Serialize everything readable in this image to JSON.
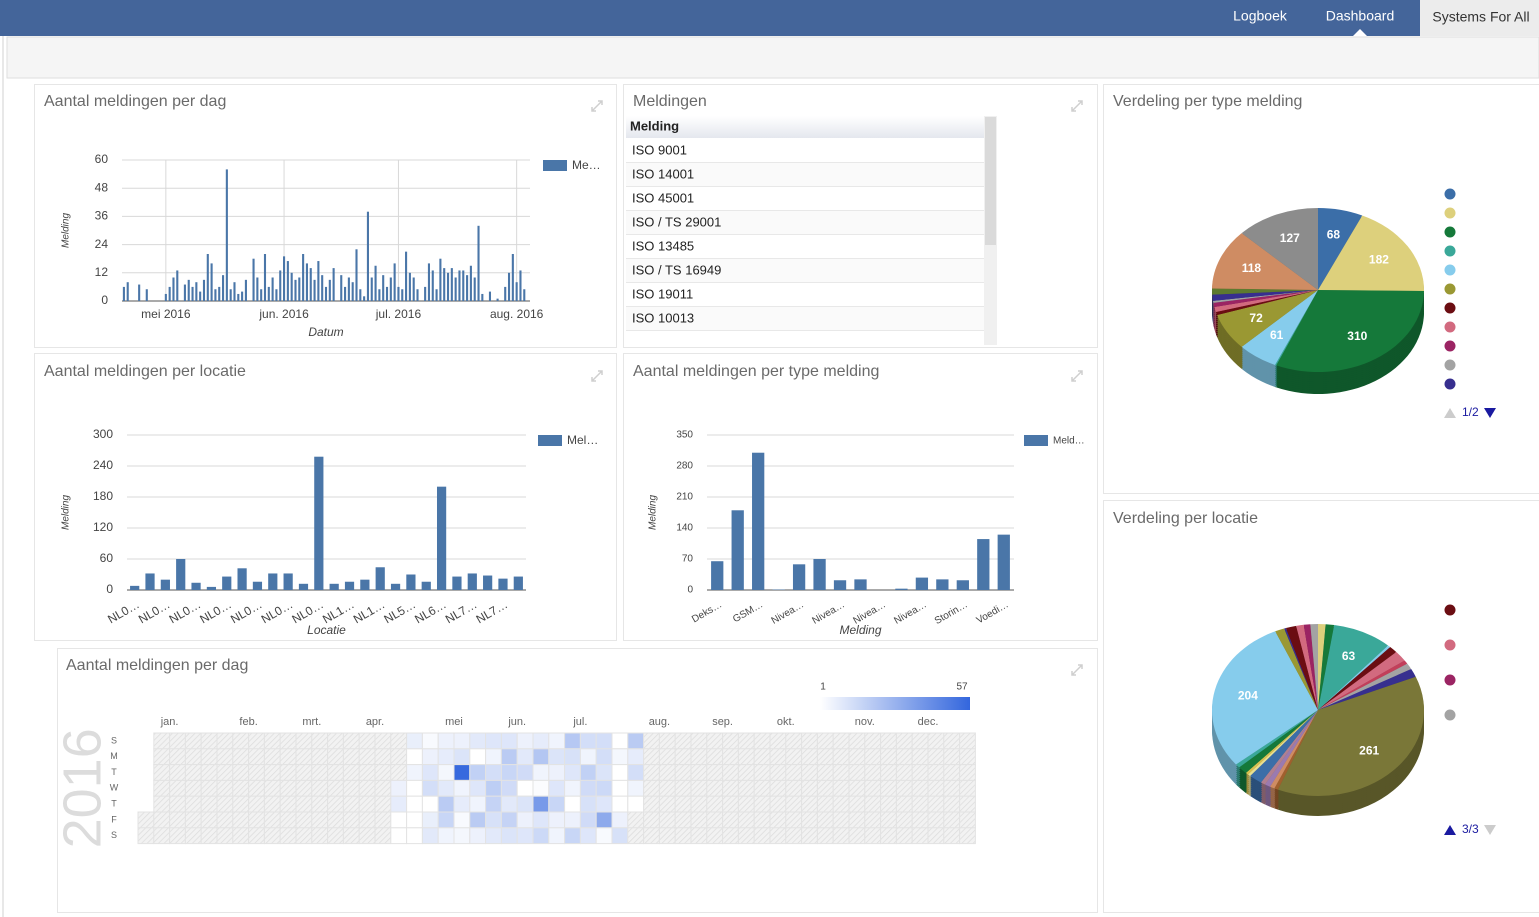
{
  "nav": {
    "items": [
      "Logboek",
      "Dashboard",
      "Systems For All"
    ]
  },
  "table": {
    "title": "Meldingen",
    "header": "Melding",
    "rows": [
      "ISO 9001",
      "ISO 14001",
      "ISO 45001",
      "ISO / TS 29001",
      "ISO 13485",
      "ISO / TS 16949",
      "ISO 19011",
      "ISO 10013"
    ]
  },
  "chart_data": [
    {
      "type": "bar",
      "title": "Aantal meldingen per dag",
      "xlabel": "Datum",
      "ylabel": "Melding",
      "categories": [
        null,
        null,
        null,
        null,
        null,
        null,
        null,
        null,
        null,
        null,
        null,
        "mei 2016",
        null,
        null,
        null,
        null,
        null,
        null,
        null,
        null,
        null,
        null,
        null,
        null,
        null,
        null,
        null,
        null,
        null,
        null,
        null,
        null,
        null,
        null,
        null,
        null,
        null,
        null,
        null,
        null,
        null,
        null,
        "jun. 2016",
        null,
        null,
        null,
        null,
        null,
        null,
        null,
        null,
        null,
        null,
        null,
        null,
        null,
        null,
        null,
        null,
        null,
        null,
        null,
        null,
        null,
        null,
        null,
        null,
        null,
        null,
        null,
        null,
        null,
        "jul. 2016",
        null,
        null,
        null,
        null,
        null,
        null,
        null,
        null,
        null,
        null,
        null,
        null,
        null,
        null,
        null,
        null,
        null,
        null,
        null,
        null,
        null,
        null,
        null,
        null,
        null,
        null,
        null,
        null,
        null,
        null,
        "aug. 2016",
        null,
        null,
        null
      ],
      "series": [
        {
          "name": "Me…",
          "color": "#4a76a8",
          "values": [
            6,
            8,
            0,
            0,
            7,
            0,
            5,
            0,
            0,
            0,
            0,
            3,
            6,
            10,
            13,
            0,
            7,
            9,
            6,
            8,
            4,
            9,
            20,
            16,
            5,
            6,
            11,
            56,
            5,
            8,
            3,
            4,
            9,
            0,
            18,
            10,
            5,
            20,
            6,
            10,
            5,
            13,
            19,
            17,
            12,
            9,
            10,
            20,
            16,
            14,
            9,
            17,
            11,
            6,
            9,
            14,
            0,
            11,
            6,
            10,
            8,
            22,
            5,
            2,
            38,
            10,
            15,
            5,
            11,
            6,
            10,
            16,
            6,
            5,
            21,
            12,
            10,
            5,
            0,
            6,
            16,
            13,
            5,
            18,
            14,
            12,
            14,
            10,
            13,
            13,
            11,
            15,
            10,
            32,
            3,
            0,
            4,
            0,
            1,
            0,
            6,
            12,
            20,
            8,
            13,
            5,
            0
          ]
        }
      ],
      "ylim": [
        0,
        60
      ],
      "yticks": [
        0,
        12,
        24,
        36,
        48,
        60
      ],
      "grid": true,
      "legend": "right"
    },
    {
      "type": "pie",
      "title": "Verdeling per type melding",
      "values": [
        68,
        182,
        310,
        2,
        61,
        72,
        6,
        10,
        8,
        4,
        12,
        12,
        118,
        127
      ],
      "colors": [
        "#3b6ea8",
        "#ddd07c",
        "#15793a",
        "#3aa899",
        "#86ccec",
        "#9a9833",
        "#6b0d12",
        "#d26a7f",
        "#9b2463",
        "#a3a3a3",
        "#372f8f",
        "#5e7a2f",
        "#cf8c63",
        "#8c8c8c"
      ],
      "legend": "right",
      "legend_page": "1/2"
    },
    {
      "type": "bar",
      "title": "Aantal meldingen per locatie",
      "xlabel": "Locatie",
      "ylabel": "Melding",
      "categories": [
        "NL0…",
        null,
        "NL0…",
        null,
        "NL0…",
        null,
        "NL0…",
        null,
        "NL0…",
        null,
        "NL0…",
        null,
        "NL0…",
        null,
        "NL1…",
        null,
        "NL1…",
        null,
        "NL5…",
        null,
        "NL6…",
        null,
        "NL7…",
        null,
        "NL7…",
        null
      ],
      "series": [
        {
          "name": "Mel…",
          "color": "#4a76a8",
          "values": [
            8,
            32,
            20,
            60,
            14,
            6,
            26,
            42,
            16,
            32,
            32,
            12,
            258,
            12,
            16,
            20,
            44,
            12,
            30,
            16,
            200,
            26,
            32,
            28,
            22,
            26
          ]
        }
      ],
      "ylim": [
        0,
        300
      ],
      "yticks": [
        0,
        60,
        120,
        180,
        240,
        300
      ],
      "grid": true,
      "legend": "right"
    },
    {
      "type": "bar",
      "title": "Aantal meldingen per type melding",
      "xlabel": "Melding",
      "ylabel": "Melding",
      "categories": [
        "Deks…",
        null,
        "GSM…",
        null,
        "Nivea…",
        null,
        "Nivea…",
        null,
        "Nivea…",
        null,
        "Nivea…",
        null,
        "Storin…",
        null,
        "Voedi…"
      ],
      "series": [
        {
          "name": "Meld…",
          "color": "#4a76a8",
          "values": [
            65,
            180,
            310,
            1,
            58,
            70,
            22,
            24,
            0,
            3,
            28,
            24,
            22,
            115,
            125
          ]
        }
      ],
      "ylim": [
        0,
        350
      ],
      "yticks": [
        0,
        70,
        140,
        210,
        280,
        350
      ],
      "grid": true,
      "legend": "right"
    },
    {
      "type": "pie",
      "title": "Verdeling per locatie",
      "values": [
        8,
        9,
        63,
        3,
        9,
        14,
        5,
        8,
        11,
        261,
        4,
        5,
        6,
        5,
        14,
        3,
        3,
        10,
        5,
        204,
        10,
        2,
        11,
        8,
        7,
        8
      ],
      "colors": [
        "#ddd07c",
        "#15793a",
        "#3aa899",
        "#86ccec",
        "#6b0d12",
        "#d26a7f",
        "#c23f5a",
        "#a3a3a3",
        "#372f8f",
        "#7a7738",
        "#a0602e",
        "#cf8c63",
        "#9a7ab0",
        "#b08090",
        "#3b6ea8",
        "#e8e090",
        "#d8c050",
        "#15793a",
        "#3aa899",
        "#86ccec",
        "#9a9833",
        "#372f8f",
        "#6b0d12",
        "#d26a7f",
        "#9b2463",
        "#a3a3a3"
      ],
      "legend": "right",
      "legend_page": "3/3"
    },
    {
      "type": "calendar",
      "title": "Aantal meldingen per dag",
      "year": 2016,
      "months": [
        "jan.",
        "feb.",
        "mrt.",
        "apr.",
        "mei",
        "jun.",
        "jul.",
        "aug.",
        "sep.",
        "okt.",
        "nov.",
        "dec."
      ],
      "weekdays": [
        "S",
        "M",
        "T",
        "W",
        "T",
        "F",
        "S"
      ],
      "colorlim": [
        1,
        57
      ],
      "colors": [
        "#ffffff",
        "#3366dd"
      ],
      "values": [
        null,
        null,
        null,
        null,
        null,
        null,
        null,
        null,
        null,
        null,
        null,
        null,
        null,
        null,
        null,
        null,
        null,
        null,
        null,
        null,
        null,
        null,
        null,
        null,
        null,
        null,
        null,
        null,
        null,
        null,
        null,
        null,
        null,
        null,
        null,
        null,
        null,
        null,
        null,
        null,
        null,
        null,
        null,
        null,
        null,
        null,
        null,
        null,
        null,
        null,
        null,
        null,
        null,
        null,
        null,
        null,
        null,
        null,
        null,
        null,
        null,
        null,
        null,
        null,
        null,
        null,
        null,
        null,
        null,
        null,
        null,
        null,
        null,
        null,
        null,
        null,
        null,
        null,
        null,
        null,
        null,
        null,
        null,
        null,
        null,
        null,
        null,
        null,
        null,
        null,
        null,
        null,
        null,
        null,
        null,
        null,
        null,
        null,
        null,
        null,
        null,
        null,
        null,
        null,
        null,
        null,
        null,
        null,
        null,
        null,
        6,
        8,
        0,
        0,
        7,
        0,
        5,
        0,
        0,
        0,
        0,
        3,
        6,
        10,
        13,
        0,
        7,
        9,
        6,
        8,
        4,
        9,
        20,
        16,
        5,
        6,
        11,
        56,
        5,
        8,
        3,
        4,
        9,
        0,
        18,
        10,
        5,
        20,
        6,
        10,
        5,
        13,
        19,
        17,
        12,
        9,
        10,
        20,
        16,
        14,
        9,
        17,
        11,
        6,
        9,
        14,
        0,
        11,
        6,
        10,
        8,
        22,
        5,
        2,
        38,
        10,
        15,
        5,
        11,
        6,
        10,
        16,
        6,
        5,
        21,
        12,
        10,
        5,
        0,
        6,
        16,
        13,
        5,
        18,
        14,
        12,
        14,
        10,
        13,
        13,
        11,
        15,
        10,
        32,
        3,
        0,
        4,
        0,
        1,
        0,
        6,
        12,
        20,
        8,
        13,
        5,
        0,
        null,
        null,
        null,
        null,
        null,
        null,
        null,
        null,
        null,
        null,
        null,
        null,
        null,
        null,
        null,
        null,
        null,
        null,
        null,
        null,
        null,
        null,
        null,
        null,
        null,
        null,
        null,
        null,
        null,
        null,
        null,
        null,
        null,
        null,
        null,
        null,
        null,
        null,
        null,
        null,
        null,
        null,
        null,
        null,
        null,
        null,
        null,
        null,
        null,
        null,
        null,
        null,
        null,
        null,
        null,
        null,
        null,
        null,
        null,
        null,
        null,
        null,
        null,
        null,
        null,
        null,
        null,
        null,
        null,
        null,
        null,
        null,
        null,
        null,
        null,
        null,
        null,
        null,
        null,
        null,
        null,
        null,
        null,
        null,
        null,
        null,
        null,
        null,
        null,
        null,
        null,
        null,
        null,
        null,
        null,
        null,
        null,
        null,
        null,
        null,
        null,
        null,
        null,
        null,
        null,
        null,
        null,
        null,
        null,
        null,
        null,
        null,
        null,
        null,
        null,
        null,
        null,
        null,
        null,
        null,
        null,
        null,
        null,
        null,
        null,
        null,
        null,
        null,
        null,
        null,
        null,
        null,
        null,
        null,
        null,
        null,
        null,
        null,
        null,
        null,
        null,
        null,
        null,
        null,
        null,
        null,
        null,
        null,
        null
      ]
    }
  ]
}
